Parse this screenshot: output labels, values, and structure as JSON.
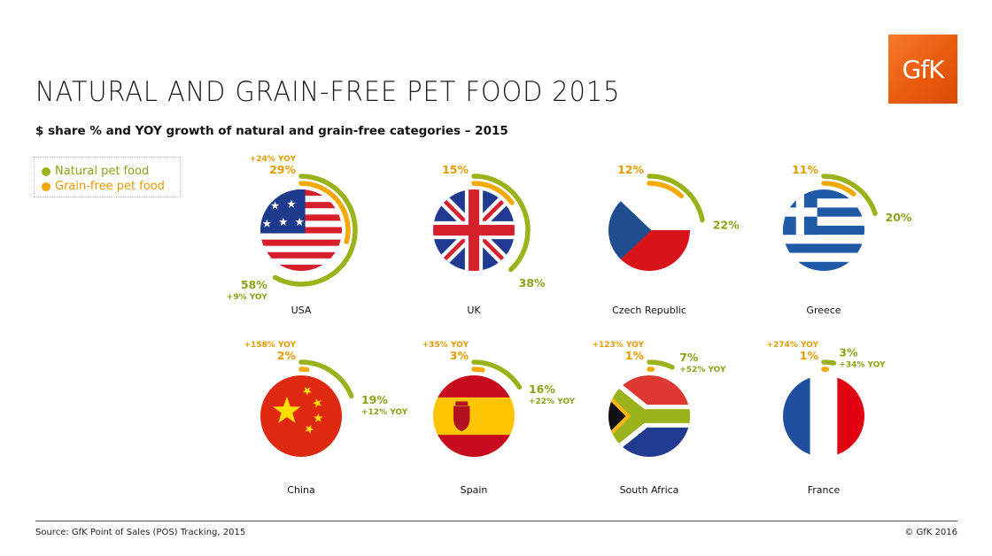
{
  "header": {
    "title": "NATURAL AND GRAIN-FREE PET FOOD 2015",
    "subtitle": "$ share % and YOY growth of natural and grain-free categories – 2015",
    "logo_text": "GfK"
  },
  "legend": {
    "items": [
      {
        "label": "Natural pet food",
        "color": "#9bb31b"
      },
      {
        "label": "Grain-free pet food",
        "color": "#f2a900"
      }
    ]
  },
  "footer": {
    "source": "Source: GfK Point of Sales (POS) Tracking, 2015",
    "copyright": "© GfK 2016"
  },
  "colors": {
    "natural": "#9bb31b",
    "grain_free": "#f2a900",
    "label_text": "#8aa317",
    "grain_label_text": "#e39b00"
  },
  "chart_data": {
    "type": "radial-bar",
    "unit": "% dollar share",
    "series": [
      {
        "name": "Natural pet food"
      },
      {
        "name": "Grain-free pet food"
      }
    ],
    "countries": [
      {
        "name": "USA",
        "flag": "usa",
        "natural": 58,
        "natural_label": "58%",
        "natural_yoy": "+9% YOY",
        "grain_free": 29,
        "grain_free_label": "29%",
        "grain_free_yoy": "+24% YOY"
      },
      {
        "name": "UK",
        "flag": "uk",
        "natural": 38,
        "natural_label": "38%",
        "natural_yoy": "",
        "grain_free": 15,
        "grain_free_label": "15%",
        "grain_free_yoy": ""
      },
      {
        "name": "Czech Republic",
        "flag": "czech",
        "natural": 22,
        "natural_label": "22%",
        "natural_yoy": "",
        "grain_free": 12,
        "grain_free_label": "12%",
        "grain_free_yoy": ""
      },
      {
        "name": "Greece",
        "flag": "greece",
        "natural": 20,
        "natural_label": "20%",
        "natural_yoy": "",
        "grain_free": 11,
        "grain_free_label": "11%",
        "grain_free_yoy": ""
      },
      {
        "name": "China",
        "flag": "china",
        "natural": 19,
        "natural_label": "19%",
        "natural_yoy": "+12% YOY",
        "grain_free": 2,
        "grain_free_label": "2%",
        "grain_free_yoy": "+158% YOY"
      },
      {
        "name": "Spain",
        "flag": "spain",
        "natural": 16,
        "natural_label": "16%",
        "natural_yoy": "+22% YOY",
        "grain_free": 3,
        "grain_free_label": "3%",
        "grain_free_yoy": "+35% YOY"
      },
      {
        "name": "South Africa",
        "flag": "south-africa",
        "natural": 7,
        "natural_label": "7%",
        "natural_yoy": "+52% YOY",
        "grain_free": 1,
        "grain_free_label": "1%",
        "grain_free_yoy": "+123% YOY"
      },
      {
        "name": "France",
        "flag": "france",
        "natural": 3,
        "natural_label": "3%",
        "natural_yoy": "+34% YOY",
        "grain_free": 1,
        "grain_free_label": "1%",
        "grain_free_yoy": "+274% YOY"
      }
    ]
  }
}
